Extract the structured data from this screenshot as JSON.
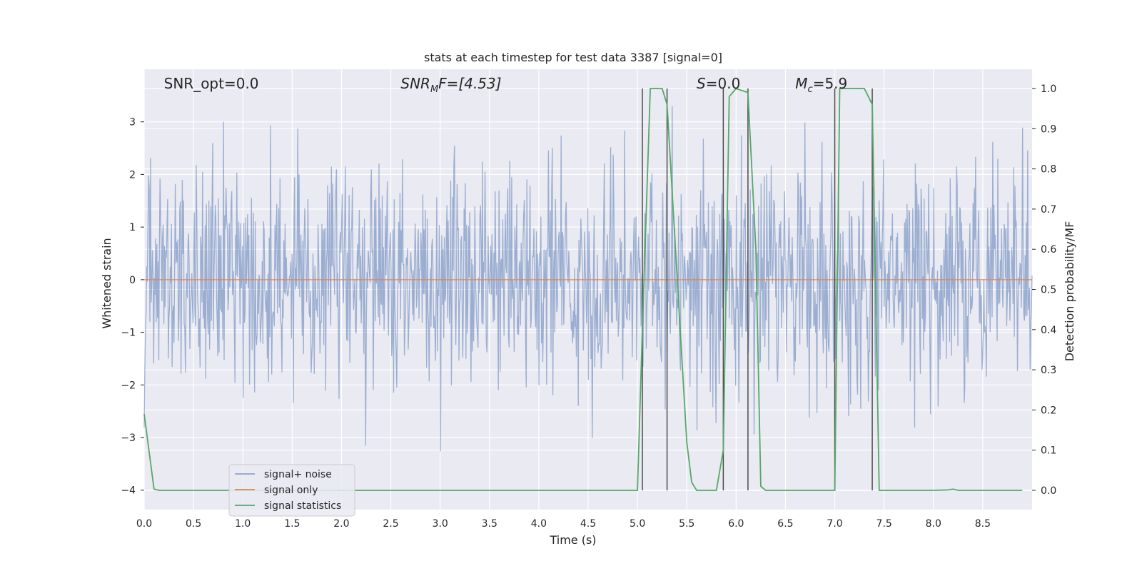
{
  "chart_data": {
    "type": "line",
    "title": "stats at each timestep for test data 3387 [signal=0]",
    "xlabel": "Time (s)",
    "ylabel": "Whitened strain",
    "y2label": "Detection probability/MF",
    "xlim": [
      0.0,
      9.0
    ],
    "ylim": [
      -4.37,
      4.0
    ],
    "y2lim": [
      -0.048,
      1.048
    ],
    "grid": true,
    "legend_position": "lower-left",
    "x_ticks": [
      "0.0",
      "0.5",
      "1.0",
      "1.5",
      "2.0",
      "2.5",
      "3.0",
      "3.5",
      "4.0",
      "4.5",
      "5.0",
      "5.5",
      "6.0",
      "6.5",
      "7.0",
      "7.5",
      "8.0",
      "8.5"
    ],
    "y_ticks": [
      "3",
      "2",
      "1",
      "0",
      "−1",
      "−2",
      "−3",
      "−4"
    ],
    "y2_ticks": [
      "1.0",
      "0.9",
      "0.8",
      "0.7",
      "0.6",
      "0.5",
      "0.4",
      "0.3",
      "0.2",
      "0.1",
      "0.0"
    ],
    "annotations": [
      {
        "text": "SNR_opt=0.0",
        "x": 0.2
      },
      {
        "text": "SNR",
        "sub": "M",
        "rest": "F=[4.53]",
        "x": 2.6,
        "italic": true
      },
      {
        "text": "S",
        "rest": "=0.0",
        "x": 5.6,
        "italic": true
      },
      {
        "text": "M",
        "sub": "c",
        "rest": "=5.9",
        "x": 6.6,
        "italic": true
      }
    ],
    "series": [
      {
        "name": "signal+ noise",
        "color": "#4c72b0",
        "description": "whitened noise, amplitude roughly -3.5 to 3.3, envelope roughly ±1.3 dense core",
        "y_range": [
          -4.0,
          3.3
        ]
      },
      {
        "name": "signal only",
        "color": "#dd8452",
        "x": [
          0.0,
          9.0
        ],
        "y": [
          0.0,
          0.0
        ]
      },
      {
        "name": "signal statistics",
        "color": "#55a868",
        "axis": "right",
        "x": [
          0.0,
          0.1,
          0.15,
          0.2,
          4.9,
          5.0,
          5.05,
          5.13,
          5.25,
          5.3,
          5.5,
          5.55,
          5.6,
          5.8,
          5.87,
          5.93,
          6.0,
          6.12,
          6.2,
          6.25,
          6.3,
          6.5,
          6.7,
          6.95,
          7.0,
          7.05,
          7.1,
          7.3,
          7.38,
          7.45,
          7.5,
          8.0,
          8.15,
          8.2,
          8.25,
          8.9
        ],
        "y": [
          0.19,
          0.003,
          0.0,
          0.0,
          0.0,
          0.0,
          0.4,
          1.0,
          1.0,
          0.96,
          0.12,
          0.02,
          0.0,
          0.0,
          0.1,
          0.98,
          1.0,
          0.99,
          0.6,
          0.01,
          0.0,
          0.0,
          0.0,
          0.0,
          0.0,
          1.0,
          1.0,
          1.0,
          0.96,
          0.0,
          0.0,
          0.0,
          0.001,
          0.003,
          0.0,
          0.0
        ]
      }
    ],
    "vertical_lines_x": [
      5.05,
      5.3,
      5.87,
      6.12,
      7.0,
      7.38
    ],
    "vertical_lines_color": "#4d4d4d"
  }
}
